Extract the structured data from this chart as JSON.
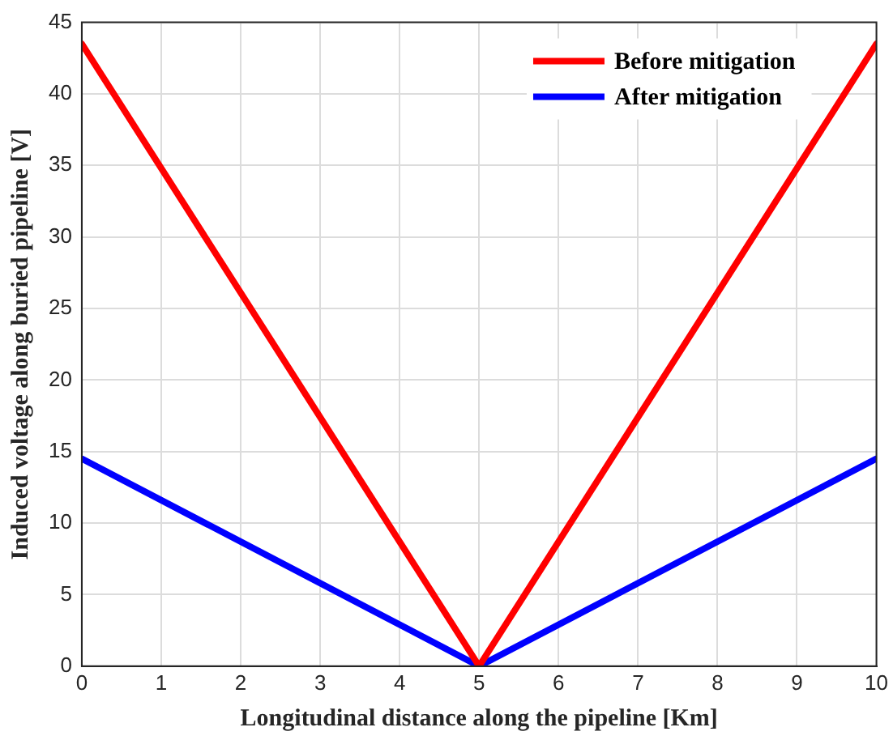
{
  "chart_data": {
    "type": "line",
    "xlabel": "Longitudinal distance along the pipeline [Km]",
    "ylabel": "Induced voltage along buried pipeline [V]",
    "x": [
      0,
      5,
      10
    ],
    "series": [
      {
        "name": "Before mitigation",
        "color": "#ff0000",
        "values": [
          43.5,
          0,
          43.5
        ]
      },
      {
        "name": "After mitigation",
        "color": "#0000ff",
        "values": [
          14.5,
          0,
          14.5
        ]
      }
    ],
    "xlim": [
      0,
      10
    ],
    "xticks": [
      0,
      1,
      2,
      3,
      4,
      5,
      6,
      7,
      8,
      9,
      10
    ],
    "ylim": [
      0,
      45
    ],
    "yticks": [
      0,
      5,
      10,
      15,
      20,
      25,
      30,
      35,
      40,
      45
    ],
    "grid": true,
    "legend": "top right",
    "marker": "none",
    "line_style": "solid"
  }
}
